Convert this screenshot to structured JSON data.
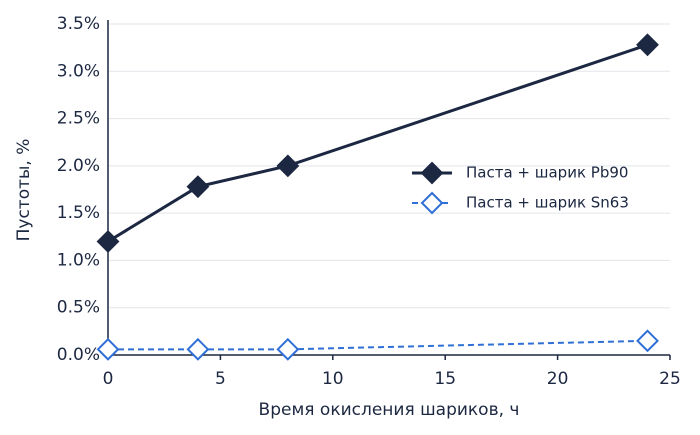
{
  "chart_data": {
    "type": "line",
    "xlabel": "Время окисления шариков, ч",
    "ylabel": "Пустоты, %",
    "x": [
      0,
      4,
      8,
      24
    ],
    "series": [
      {
        "name": "Паста + шарик Pb90",
        "color": "#1c2741",
        "linestyle": "solid",
        "marker": "filled",
        "values": [
          1.2,
          1.78,
          2.0,
          3.28
        ]
      },
      {
        "name": "Паста + шарик Sn63",
        "color": "#2f6fd6",
        "linestyle": "dashed",
        "marker": "open",
        "values": [
          0.06,
          0.06,
          0.06,
          0.15
        ]
      }
    ],
    "xlim": [
      0,
      25
    ],
    "xticks": [
      0,
      5,
      10,
      15,
      20,
      25
    ],
    "ylim": [
      0,
      3.5
    ],
    "yticks": [
      {
        "value": 0,
        "label": "0.0%"
      },
      {
        "value": 0.5,
        "label": "0.5%"
      },
      {
        "value": 1,
        "label": "1.0%"
      },
      {
        "value": 1.5,
        "label": "1.5%"
      },
      {
        "value": 2,
        "label": "2.0%"
      },
      {
        "value": 2.5,
        "label": "2.5%"
      },
      {
        "value": 3,
        "label": "3.0%"
      },
      {
        "value": 3.5,
        "label": "3.5%"
      }
    ],
    "grid": true,
    "legend": "right"
  }
}
